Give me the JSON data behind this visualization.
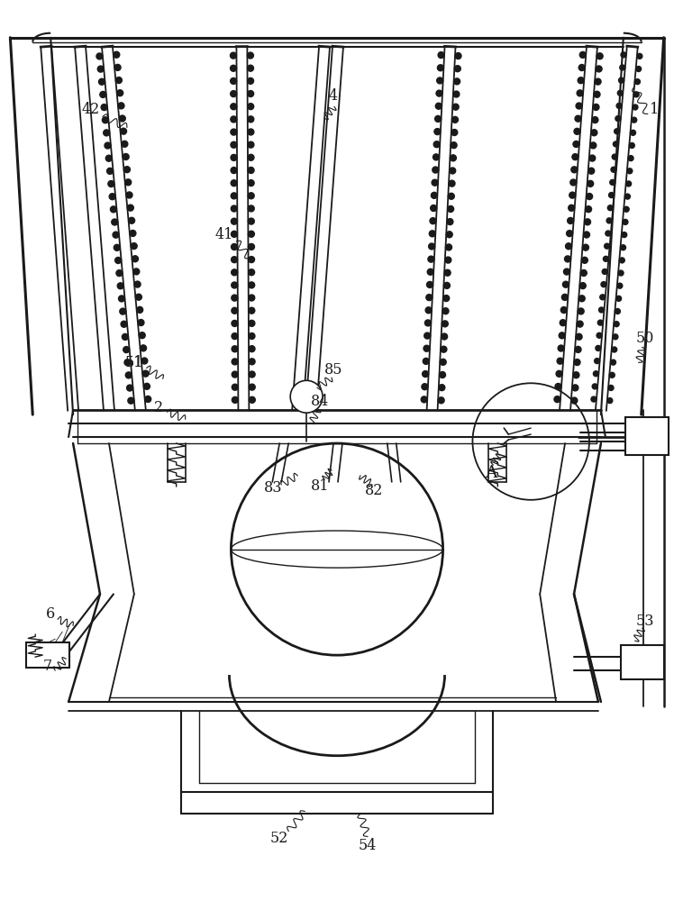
{
  "bg_color": "#ffffff",
  "line_color": "#1a1a1a",
  "label_color": "#1a1a1a",
  "fig_width": 7.48,
  "fig_height": 10.0,
  "dpi": 100
}
